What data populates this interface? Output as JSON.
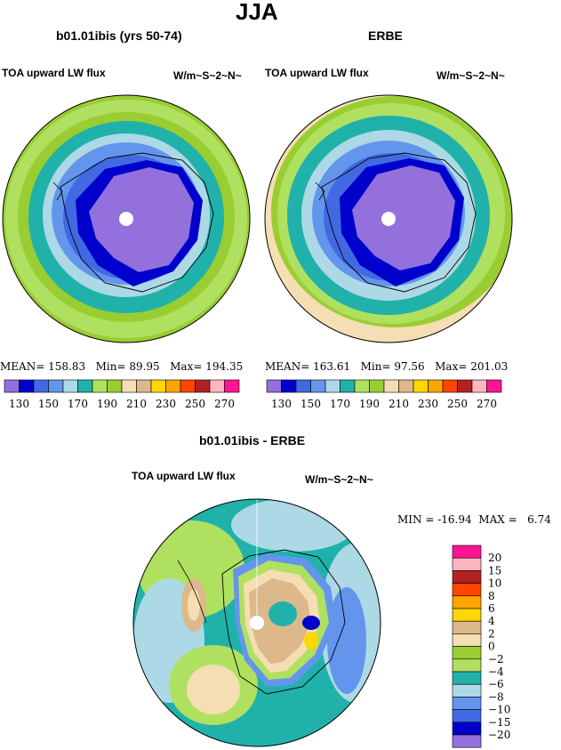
{
  "figure": {
    "title": "JJA",
    "panels": [
      {
        "heading": "b01.01ibis (yrs 50-74)",
        "left_label": "TOA upward LW flux",
        "units": "W/m~S~2~N~",
        "stats": {
          "mean_label": "MEAN=",
          "mean": "158.83",
          "min_label": "Min=",
          "min": "89.95",
          "max_label": "Max=",
          "max": "194.35"
        }
      },
      {
        "heading": "ERBE",
        "left_label": "TOA upward LW flux",
        "units": "W/m~S~2~N~",
        "stats": {
          "mean_label": "MEAN=",
          "mean": "163.61",
          "min_label": "Min=",
          "min": "97.56",
          "max_label": "Max=",
          "max": "201.03"
        }
      }
    ],
    "difference": {
      "heading": "b01.01ibis - ERBE",
      "left_label": "TOA upward LW flux",
      "units": "W/m~S~2~N~",
      "stats": {
        "min_label": "MIN =",
        "min": "-16.94",
        "max_label": "MAX =",
        "max": "6.74"
      }
    }
  },
  "chart_data": [
    {
      "type": "heatmap",
      "projection": "south polar stereographic",
      "title": "b01.01ibis (yrs 50-74)",
      "variable": "TOA upward LW flux",
      "units": "W/m~S~2~N~",
      "mean": 158.83,
      "min": 89.95,
      "max": 194.35,
      "colorbar_ticks": [
        "130",
        "150",
        "170",
        "190",
        "210",
        "230",
        "250",
        "270"
      ],
      "colorbar_colors": [
        "#9370db",
        "#0000cd",
        "#4169e1",
        "#6495ed",
        "#add8e6",
        "#20b2aa",
        "#b0e060",
        "#9acd32",
        "#f5deb3",
        "#ddb88a",
        "#ffd700",
        "#ffa500",
        "#ff4500",
        "#b22222",
        "#ffb6c1",
        "#ff1493"
      ]
    },
    {
      "type": "heatmap",
      "projection": "south polar stereographic",
      "title": "ERBE",
      "variable": "TOA upward LW flux",
      "units": "W/m~S~2~N~",
      "mean": 163.61,
      "min": 97.56,
      "max": 201.03,
      "colorbar_ticks": [
        "130",
        "150",
        "170",
        "190",
        "210",
        "230",
        "250",
        "270"
      ],
      "colorbar_colors": [
        "#9370db",
        "#0000cd",
        "#4169e1",
        "#6495ed",
        "#add8e6",
        "#20b2aa",
        "#b0e060",
        "#9acd32",
        "#f5deb3",
        "#ddb88a",
        "#ffd700",
        "#ffa500",
        "#ff4500",
        "#b22222",
        "#ffb6c1",
        "#ff1493"
      ]
    },
    {
      "type": "heatmap",
      "projection": "south polar stereographic",
      "title": "b01.01ibis - ERBE",
      "variable": "TOA upward LW flux",
      "units": "W/m~S~2~N~",
      "min": -16.94,
      "max": 6.74,
      "colorbar_ticks": [
        "20",
        "15",
        "10",
        "8",
        "6",
        "4",
        "2",
        "0",
        "−2",
        "−4",
        "−6",
        "−8",
        "−10",
        "−15",
        "−20"
      ],
      "colorbar_colors": [
        "#ff1493",
        "#ffb6c1",
        "#b22222",
        "#ff4500",
        "#ffa500",
        "#ffd700",
        "#ddb88a",
        "#f5deb3",
        "#9acd32",
        "#b0e060",
        "#20b2aa",
        "#add8e6",
        "#6495ed",
        "#4169e1",
        "#0000cd",
        "#9370db"
      ]
    }
  ]
}
